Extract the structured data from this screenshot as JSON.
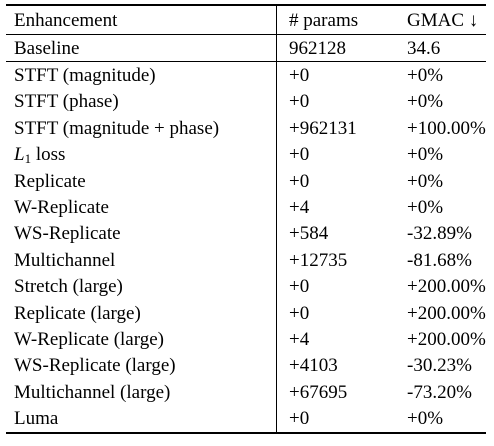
{
  "table": {
    "headers": {
      "enhancement": "Enhancement",
      "params": "# params",
      "gmac": "GMAC ↓"
    },
    "baseline": {
      "name": "Baseline",
      "params": "962128",
      "gmac": "34.6"
    },
    "rows": [
      {
        "name": "STFT (magnitude)",
        "params": "+0",
        "gmac": "+0%"
      },
      {
        "name": "STFT (phase)",
        "params": "+0",
        "gmac": "+0%"
      },
      {
        "name": "STFT (magnitude + phase)",
        "params": "+962131",
        "gmac": "+100.00%"
      },
      {
        "name_var": "L",
        "name_sub": "1",
        "name_rest": " loss",
        "params": "+0",
        "gmac": "+0%"
      },
      {
        "name": "Replicate",
        "params": "+0",
        "gmac": "+0%"
      },
      {
        "name": "W-Replicate",
        "params": "+4",
        "gmac": "+0%"
      },
      {
        "name": "WS-Replicate",
        "params": "+584",
        "gmac": "-32.89%"
      },
      {
        "name": "Multichannel",
        "params": "+12735",
        "gmac": "-81.68%"
      },
      {
        "name": "Stretch (large)",
        "params": "+0",
        "gmac": "+200.00%"
      },
      {
        "name": "Replicate (large)",
        "params": "+0",
        "gmac": "+200.00%"
      },
      {
        "name": "W-Replicate (large)",
        "params": "+4",
        "gmac": "+200.00%"
      },
      {
        "name": "WS-Replicate (large)",
        "params": "+4103",
        "gmac": "-30.23%"
      },
      {
        "name": "Multichannel (large)",
        "params": "+67695",
        "gmac": "-73.20%"
      },
      {
        "name": "Luma",
        "params": "+0",
        "gmac": "+0%"
      }
    ]
  }
}
